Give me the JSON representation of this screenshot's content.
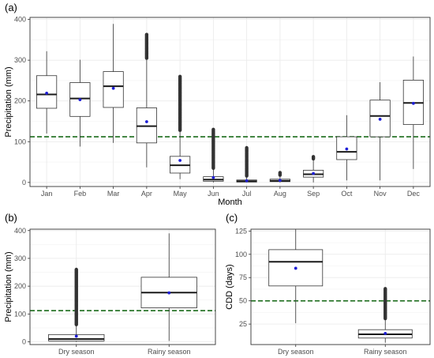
{
  "chart_data": [
    {
      "id": "a",
      "panel_label": "(a)",
      "type": "boxplot",
      "xlabel": "Month",
      "ylabel": "Precipitation (mm)",
      "ylim": [
        -10,
        405
      ],
      "yticks": [
        0,
        100,
        200,
        300,
        400
      ],
      "grid": true,
      "reference_line": {
        "y": 112,
        "style": "dashed",
        "color": "#1a6b1a"
      },
      "categories": [
        "Jan",
        "Feb",
        "Mar",
        "Apr",
        "May",
        "Jun",
        "Jul",
        "Aug",
        "Sep",
        "Oct",
        "Nov",
        "Dec"
      ],
      "boxes": [
        {
          "min": 120,
          "q1": 182,
          "median": 216,
          "q3": 262,
          "max": 322,
          "mean": 219,
          "outliers": []
        },
        {
          "min": 88,
          "q1": 162,
          "median": 206,
          "q3": 245,
          "max": 301,
          "mean": 203,
          "outliers": []
        },
        {
          "min": 97,
          "q1": 184,
          "median": 236,
          "q3": 272,
          "max": 389,
          "mean": 231,
          "outliers": []
        },
        {
          "min": 37,
          "q1": 97,
          "median": 138,
          "q3": 183,
          "max": 302,
          "mean": 149,
          "outliers_range": [
            305,
            363
          ]
        },
        {
          "min": 8,
          "q1": 23,
          "median": 42,
          "q3": 64,
          "max": 124,
          "mean": 54,
          "outliers_range": [
            128,
            260
          ]
        },
        {
          "min": 0,
          "q1": 3,
          "median": 7,
          "q3": 14,
          "max": 32,
          "mean": 12,
          "outliers_range": [
            35,
            130
          ]
        },
        {
          "min": 0,
          "q1": 1,
          "median": 3,
          "q3": 6,
          "max": 13,
          "mean": 4,
          "outliers_range": [
            16,
            85
          ]
        },
        {
          "min": 0,
          "q1": 2,
          "median": 4,
          "q3": 8,
          "max": 16,
          "mean": 5,
          "outliers_range": [
            18,
            24
          ]
        },
        {
          "min": 0,
          "q1": 13,
          "median": 20,
          "q3": 30,
          "max": 55,
          "mean": 22,
          "outliers_range": [
            58,
            63
          ]
        },
        {
          "min": 5,
          "q1": 56,
          "median": 75,
          "q3": 112,
          "max": 165,
          "mean": 82,
          "outliers": []
        },
        {
          "min": 5,
          "q1": 112,
          "median": 163,
          "q3": 202,
          "max": 246,
          "mean": 155,
          "outliers": []
        },
        {
          "min": 33,
          "q1": 142,
          "median": 195,
          "q3": 251,
          "max": 309,
          "mean": 194,
          "outliers": []
        }
      ]
    },
    {
      "id": "b",
      "panel_label": "(b)",
      "type": "boxplot",
      "xlabel": "",
      "ylabel": "Precipitation (mm)",
      "ylim": [
        -10,
        405
      ],
      "yticks": [
        0,
        100,
        200,
        300,
        400
      ],
      "grid": true,
      "reference_line": {
        "y": 112,
        "style": "dashed",
        "color": "#1a6b1a"
      },
      "categories": [
        "Dry season",
        "Rainy season"
      ],
      "boxes": [
        {
          "min": 0,
          "q1": 3,
          "median": 10,
          "q3": 26,
          "max": 60,
          "mean": 20,
          "outliers_range": [
            62,
            260
          ]
        },
        {
          "min": 3,
          "q1": 122,
          "median": 177,
          "q3": 232,
          "max": 390,
          "mean": 176,
          "outliers": []
        }
      ]
    },
    {
      "id": "c",
      "panel_label": "(c)",
      "type": "boxplot",
      "xlabel": "",
      "ylabel": "CDD (days)",
      "ylim": [
        3,
        127
      ],
      "yticks": [
        25,
        50,
        75,
        100,
        125
      ],
      "grid": true,
      "reference_line": {
        "y": 50,
        "style": "dashed",
        "color": "#1a6b1a"
      },
      "categories": [
        "Dry season",
        "Rainy season"
      ],
      "boxes": [
        {
          "min": 26,
          "q1": 66,
          "median": 92,
          "q3": 105,
          "max": 127,
          "mean": 85,
          "outliers": []
        },
        {
          "min": 5,
          "q1": 10,
          "median": 14,
          "q3": 19,
          "max": 30,
          "mean": 15,
          "outliers_range": [
            31,
            63
          ]
        }
      ]
    }
  ],
  "style": {
    "box_fill": "#ffffff",
    "box_stroke": "#333333",
    "outlier_color": "#333333",
    "mean_color": "#1f1fd6",
    "panel_background": "#ffffff",
    "grid_color": "#ebebeb",
    "border_color": "#333333"
  }
}
